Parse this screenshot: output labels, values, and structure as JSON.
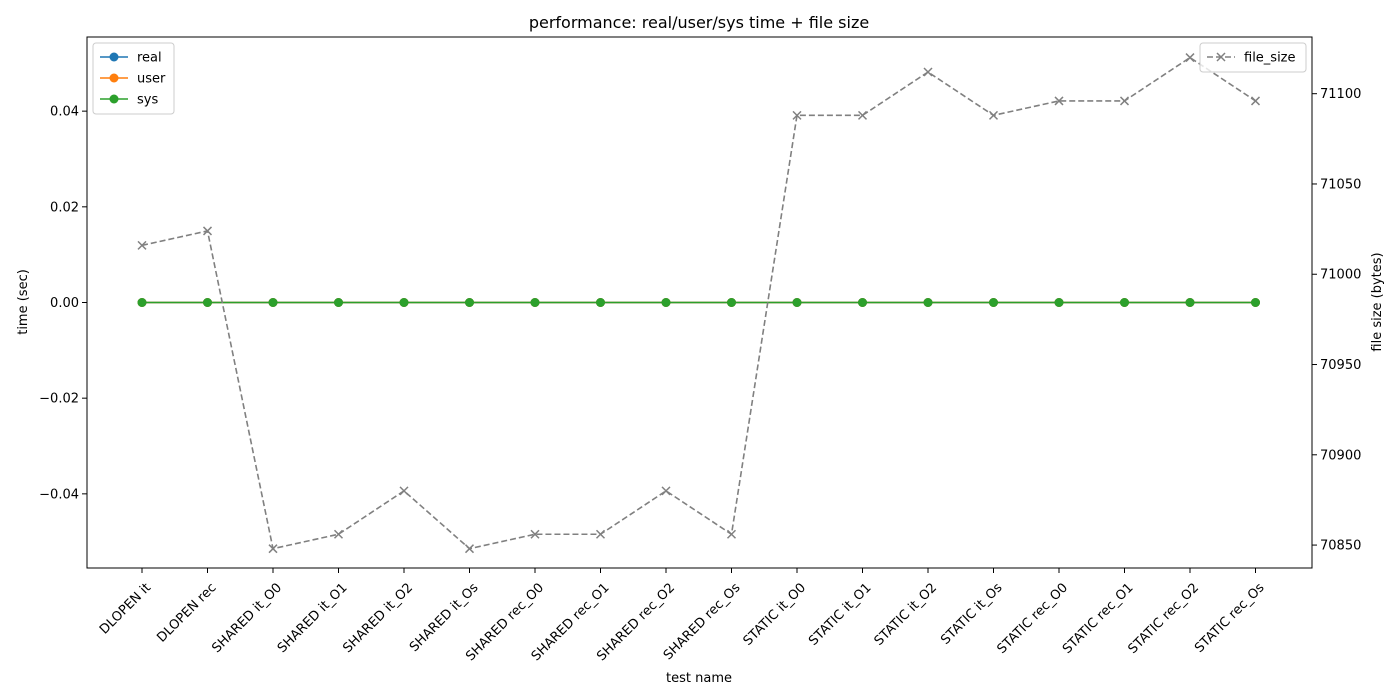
{
  "chart_data": {
    "type": "line",
    "title": "performance: real/user/sys time + file size",
    "xlabel": "test name",
    "ylabel_left": "time (sec)",
    "ylabel_right": "file size (bytes)",
    "categories": [
      "DLOPEN it",
      "DLOPEN rec",
      "SHARED it_O0",
      "SHARED it_O1",
      "SHARED it_O2",
      "SHARED it_Os",
      "SHARED rec_O0",
      "SHARED rec_O1",
      "SHARED rec_O2",
      "SHARED rec_Os",
      "STATIC it_O0",
      "STATIC it_O1",
      "STATIC it_O2",
      "STATIC it_Os",
      "STATIC rec_O0",
      "STATIC rec_O1",
      "STATIC rec_O2",
      "STATIC rec_Os"
    ],
    "left_axis": {
      "ylim": [
        -0.0555,
        0.0555
      ],
      "ticks": [
        -0.04,
        -0.02,
        0.0,
        0.02,
        0.04
      ],
      "tick_labels": [
        "−0.04",
        "−0.02",
        "0.00",
        "0.02",
        "0.04"
      ]
    },
    "right_axis": {
      "ylim": [
        70837.3,
        71131.4
      ],
      "ticks": [
        70850,
        70900,
        70950,
        71000,
        71050,
        71100
      ],
      "tick_labels": [
        "70850",
        "70900",
        "70950",
        "71000",
        "71050",
        "71100"
      ]
    },
    "series": [
      {
        "name": "real",
        "axis": "left",
        "color": "#1f77b4",
        "marker": "circle",
        "linestyle": "solid",
        "values": [
          0,
          0,
          0,
          0,
          0,
          0,
          0,
          0,
          0,
          0,
          0,
          0,
          0,
          0,
          0,
          0,
          0,
          0
        ]
      },
      {
        "name": "user",
        "axis": "left",
        "color": "#ff7f0e",
        "marker": "circle",
        "linestyle": "solid",
        "values": [
          0,
          0,
          0,
          0,
          0,
          0,
          0,
          0,
          0,
          0,
          0,
          0,
          0,
          0,
          0,
          0,
          0,
          0
        ]
      },
      {
        "name": "sys",
        "axis": "left",
        "color": "#2ca02c",
        "marker": "circle",
        "linestyle": "solid",
        "values": [
          0,
          0,
          0,
          0,
          0,
          0,
          0,
          0,
          0,
          0,
          0,
          0,
          0,
          0,
          0,
          0,
          0,
          0
        ]
      },
      {
        "name": "file_size",
        "axis": "right",
        "color": "#808080",
        "marker": "x",
        "linestyle": "dashed",
        "values": [
          71016,
          71024,
          70848,
          70856,
          70880,
          70848,
          70856,
          70856,
          70880,
          70856,
          71088,
          71088,
          71112,
          71088,
          71096,
          71096,
          71120,
          71096
        ]
      }
    ],
    "legend_left": {
      "placement": "upper-left",
      "entries": [
        "real",
        "user",
        "sys"
      ]
    },
    "legend_right": {
      "placement": "upper-right",
      "entries": [
        "file_size"
      ]
    },
    "grid": false
  }
}
